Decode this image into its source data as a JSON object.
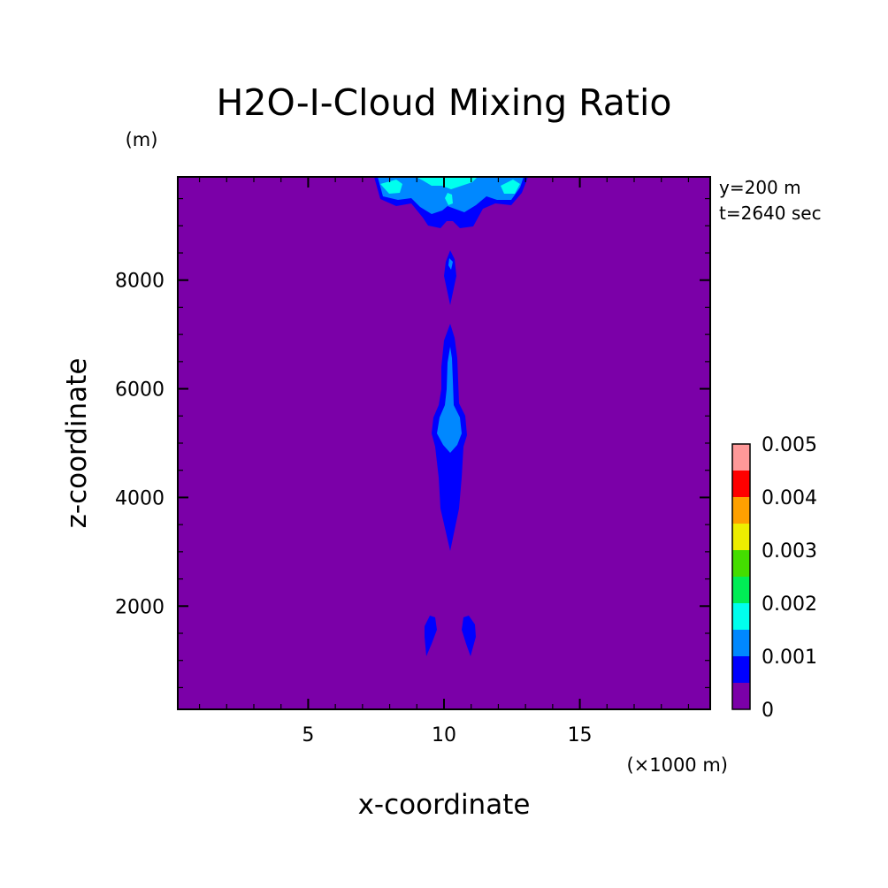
{
  "chart_data": {
    "type": "heatmap",
    "title": "H2O-I-Cloud Mixing Ratio",
    "xlabel": "x-coordinate",
    "ylabel": "z-coordinate",
    "x_unit": "(×1000 m)",
    "y_unit": "(m)",
    "xlim": [
      0.2,
      19.8
    ],
    "ylim": [
      100,
      9900
    ],
    "x_ticks": [
      5,
      10,
      15
    ],
    "y_ticks": [
      2000,
      4000,
      6000,
      8000
    ],
    "annotations": [
      "y=200 m",
      "t=2640 sec"
    ],
    "colorbar": {
      "levels": [
        0,
        0.0005,
        0.001,
        0.0015,
        0.002,
        0.0025,
        0.003,
        0.0035,
        0.004,
        0.0045,
        0.005
      ],
      "colors": [
        "#7b00a8",
        "#0000ff",
        "#0088ff",
        "#00ffee",
        "#00ee55",
        "#44dd00",
        "#eeee00",
        "#ffa000",
        "#ff0000",
        "#ff9999"
      ],
      "labels": [
        "0",
        "0.001",
        "0.002",
        "0.003",
        "0.004",
        "0.005"
      ]
    },
    "background_value": 0,
    "contour_regions": [
      {
        "level": 0.0005,
        "x_range": [
          7.9,
          12.9
        ],
        "z_range": [
          9000,
          9900
        ],
        "note": "cloud top band"
      },
      {
        "level": 0.001,
        "x_range": [
          8.0,
          12.7
        ],
        "z_range": [
          9300,
          9900
        ]
      },
      {
        "level": 0.0015,
        "x_range": [
          7.9,
          12.6
        ],
        "z_range": [
          9700,
          9900
        ]
      },
      {
        "level": 0.0005,
        "x_range": [
          9.9,
          10.4
        ],
        "z_range": [
          7600,
          8500
        ]
      },
      {
        "level": 0.0005,
        "x_range": [
          9.5,
          10.6
        ],
        "z_range": [
          3000,
          7200
        ]
      },
      {
        "level": 0.001,
        "x_range": [
          9.7,
          10.5
        ],
        "z_range": [
          4900,
          6800
        ]
      },
      {
        "level": 0.0005,
        "x_range": [
          9.3,
          9.7
        ],
        "z_range": [
          1000,
          1800
        ]
      },
      {
        "level": 0.0005,
        "x_range": [
          10.7,
          11.2
        ],
        "z_range": [
          1000,
          1800
        ]
      }
    ]
  }
}
